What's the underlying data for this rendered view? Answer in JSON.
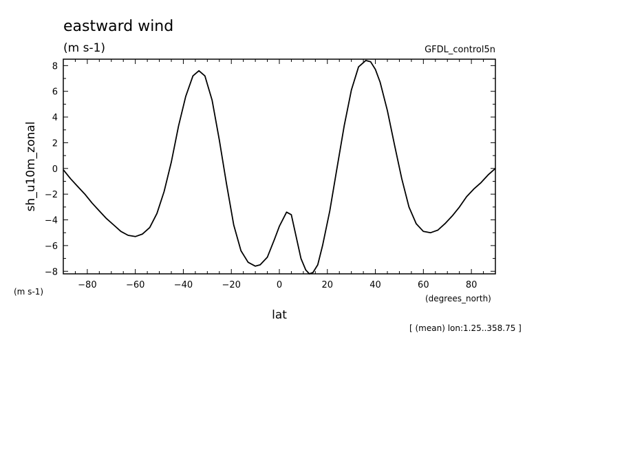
{
  "chart_data": {
    "type": "line",
    "title": "eastward wind",
    "subtitle": "(m s-1)",
    "dataset_label": "GFDL_control5n",
    "xlabel": "lat",
    "xunits": "(degrees_north)",
    "ylabel": "sh_u10m_zonal",
    "yunits": "(m s-1)",
    "footnote": "[ (mean) lon:1.25..358.75 ]",
    "xlim": [
      -90,
      90
    ],
    "ylim": [
      -8.2,
      8.5
    ],
    "xticks": [
      -80,
      -60,
      -40,
      -20,
      0,
      20,
      40,
      60,
      80
    ],
    "yticks": [
      -8,
      -6,
      -4,
      -2,
      0,
      2,
      4,
      6,
      8
    ],
    "grid": false,
    "series": [
      {
        "x": [
          -90,
          -87,
          -84,
          -81,
          -78,
          -75,
          -72,
          -69,
          -66,
          -63,
          -60,
          -57,
          -54,
          -51,
          -48,
          -45,
          -42,
          -39,
          -36,
          -33.5,
          -31,
          -28,
          -25,
          -22,
          -19,
          -16,
          -13,
          -10,
          -8,
          -5,
          -2,
          0,
          3,
          5,
          7,
          9,
          11,
          12.5,
          14,
          16,
          18,
          21,
          24,
          27,
          30,
          33,
          36,
          38,
          40,
          42,
          45,
          48,
          51,
          54,
          57,
          60,
          63,
          66,
          69,
          72,
          75,
          78,
          81,
          84,
          87,
          90
        ],
        "y": [
          -0.1,
          -0.8,
          -1.4,
          -2.0,
          -2.7,
          -3.3,
          -3.9,
          -4.4,
          -4.9,
          -5.2,
          -5.3,
          -5.1,
          -4.6,
          -3.5,
          -1.8,
          0.5,
          3.3,
          5.6,
          7.2,
          7.6,
          7.2,
          5.3,
          2.2,
          -1.2,
          -4.4,
          -6.4,
          -7.3,
          -7.6,
          -7.5,
          -6.9,
          -5.5,
          -4.5,
          -3.4,
          -3.6,
          -5.3,
          -7.0,
          -7.9,
          -8.2,
          -8.1,
          -7.5,
          -6.0,
          -3.3,
          0.0,
          3.3,
          6.1,
          7.9,
          8.4,
          8.3,
          7.7,
          6.7,
          4.5,
          1.8,
          -0.8,
          -3.0,
          -4.3,
          -4.9,
          -5.0,
          -4.8,
          -4.3,
          -3.7,
          -3.0,
          -2.2,
          -1.6,
          -1.1,
          -0.5,
          0.0
        ]
      }
    ]
  }
}
